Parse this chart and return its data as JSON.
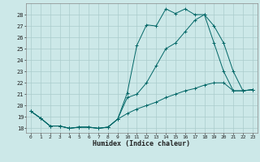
{
  "xlabel": "Humidex (Indice chaleur)",
  "bg_color": "#cce8e8",
  "grid_color": "#aacccc",
  "line_color": "#006666",
  "xlim": [
    -0.5,
    23.5
  ],
  "ylim": [
    17.6,
    29.0
  ],
  "xticks": [
    0,
    1,
    2,
    3,
    4,
    5,
    6,
    7,
    8,
    9,
    10,
    11,
    12,
    13,
    14,
    15,
    16,
    17,
    18,
    19,
    20,
    21,
    22,
    23
  ],
  "yticks": [
    18,
    19,
    20,
    21,
    22,
    23,
    24,
    25,
    26,
    27,
    28
  ],
  "line1_x": [
    0,
    1,
    2,
    3,
    4,
    5,
    6,
    7,
    8,
    9,
    10,
    11,
    12,
    13,
    14,
    15,
    16,
    17,
    18,
    19,
    20,
    21,
    22,
    23
  ],
  "line1_y": [
    19.5,
    18.9,
    18.2,
    18.2,
    18.0,
    18.1,
    18.1,
    18.0,
    18.1,
    18.8,
    21.1,
    25.3,
    27.1,
    27.0,
    28.5,
    28.1,
    28.5,
    28.0,
    28.0,
    25.5,
    23.0,
    21.3,
    21.3,
    21.4
  ],
  "line2_x": [
    0,
    1,
    2,
    3,
    4,
    5,
    6,
    7,
    8,
    9,
    10,
    11,
    12,
    13,
    14,
    15,
    16,
    17,
    18,
    19,
    20,
    21,
    22,
    23
  ],
  "line2_y": [
    19.5,
    18.9,
    18.2,
    18.2,
    18.0,
    18.1,
    18.1,
    18.0,
    18.1,
    18.8,
    20.7,
    21.0,
    22.0,
    23.5,
    25.0,
    25.5,
    26.5,
    27.5,
    28.0,
    27.0,
    25.5,
    23.0,
    21.3,
    21.4
  ],
  "line3_x": [
    0,
    1,
    2,
    3,
    4,
    5,
    6,
    7,
    8,
    9,
    10,
    11,
    12,
    13,
    14,
    15,
    16,
    17,
    18,
    19,
    20,
    21,
    22,
    23
  ],
  "line3_y": [
    19.5,
    18.9,
    18.2,
    18.2,
    18.0,
    18.1,
    18.1,
    18.0,
    18.1,
    18.8,
    19.3,
    19.7,
    20.0,
    20.3,
    20.7,
    21.0,
    21.3,
    21.5,
    21.8,
    22.0,
    22.0,
    21.3,
    21.3,
    21.4
  ]
}
